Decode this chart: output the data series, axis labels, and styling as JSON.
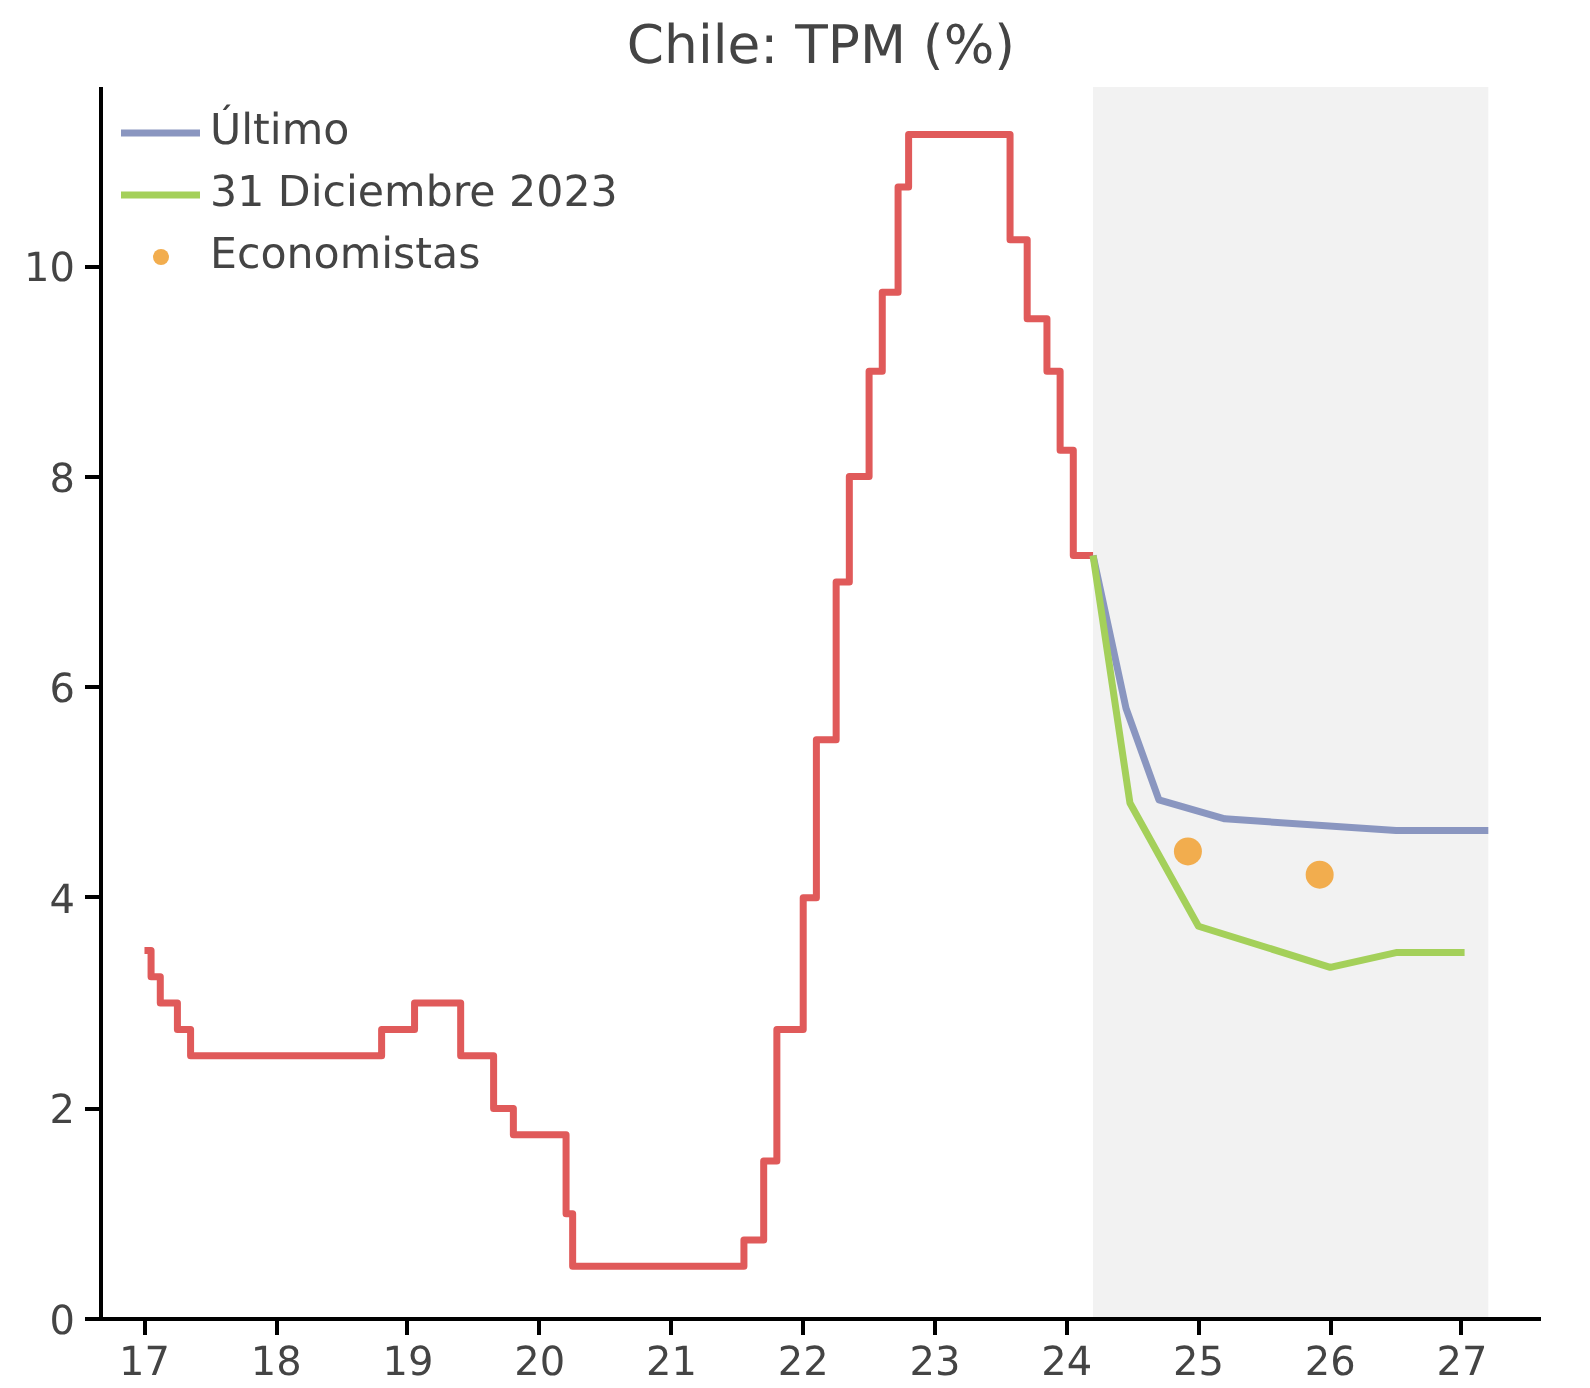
{
  "chart_data": {
    "type": "step",
    "title": "Chile: TPM (%)",
    "xlim": [
      16.67,
      27.6
    ],
    "ylim": [
      0,
      11.7
    ],
    "xticks": [
      17,
      18,
      19,
      20,
      21,
      22,
      23,
      24,
      25,
      26,
      27
    ],
    "yticks": [
      0,
      2,
      4,
      6,
      8,
      10
    ],
    "grid": false,
    "legend": "top left",
    "line_style": "solid",
    "bands": [
      {
        "axis": "x",
        "from": 24.2,
        "to": 27.2,
        "color": "#f2f2f2"
      }
    ],
    "series": [
      {
        "color": "#e05a5a",
        "x": [
          17.0,
          17.05,
          17.12,
          17.25,
          17.35,
          18.8,
          19.05,
          19.4,
          19.65,
          19.8,
          20.2,
          20.25,
          21.55,
          21.7,
          21.8,
          22.0,
          22.1,
          22.25,
          22.35,
          22.5,
          22.6,
          22.72,
          22.8,
          23.57,
          23.7,
          23.85,
          23.95,
          24.05,
          24.2
        ],
        "values": [
          3.5,
          3.25,
          3.0,
          2.75,
          2.5,
          2.75,
          3.0,
          2.5,
          2.0,
          1.75,
          1.0,
          0.5,
          0.75,
          1.5,
          2.75,
          4.0,
          5.5,
          7.0,
          8.0,
          9.0,
          9.75,
          10.75,
          11.25,
          10.25,
          9.5,
          9.0,
          8.25,
          7.25,
          7.25
        ]
      },
      {
        "type": "line",
        "name": "Último",
        "color": "#8a96c0",
        "x": [
          24.2,
          24.45,
          24.7,
          25.2,
          26.5,
          27.2
        ],
        "values": [
          7.25,
          5.8,
          4.93,
          4.75,
          4.64,
          4.64
        ]
      },
      {
        "type": "line",
        "name": "31 Diciembre 2023",
        "color": "#a4d05a",
        "x": [
          24.2,
          24.48,
          25.0,
          26.0,
          26.5,
          27.02
        ],
        "values": [
          7.25,
          4.9,
          3.73,
          3.34,
          3.48,
          3.48
        ]
      },
      {
        "type": "scatter",
        "marker": "circle",
        "name": "Economistas",
        "color": "#f2ad4e",
        "x": [
          24.92,
          25.92
        ],
        "values": [
          4.44,
          4.22
        ]
      }
    ]
  }
}
